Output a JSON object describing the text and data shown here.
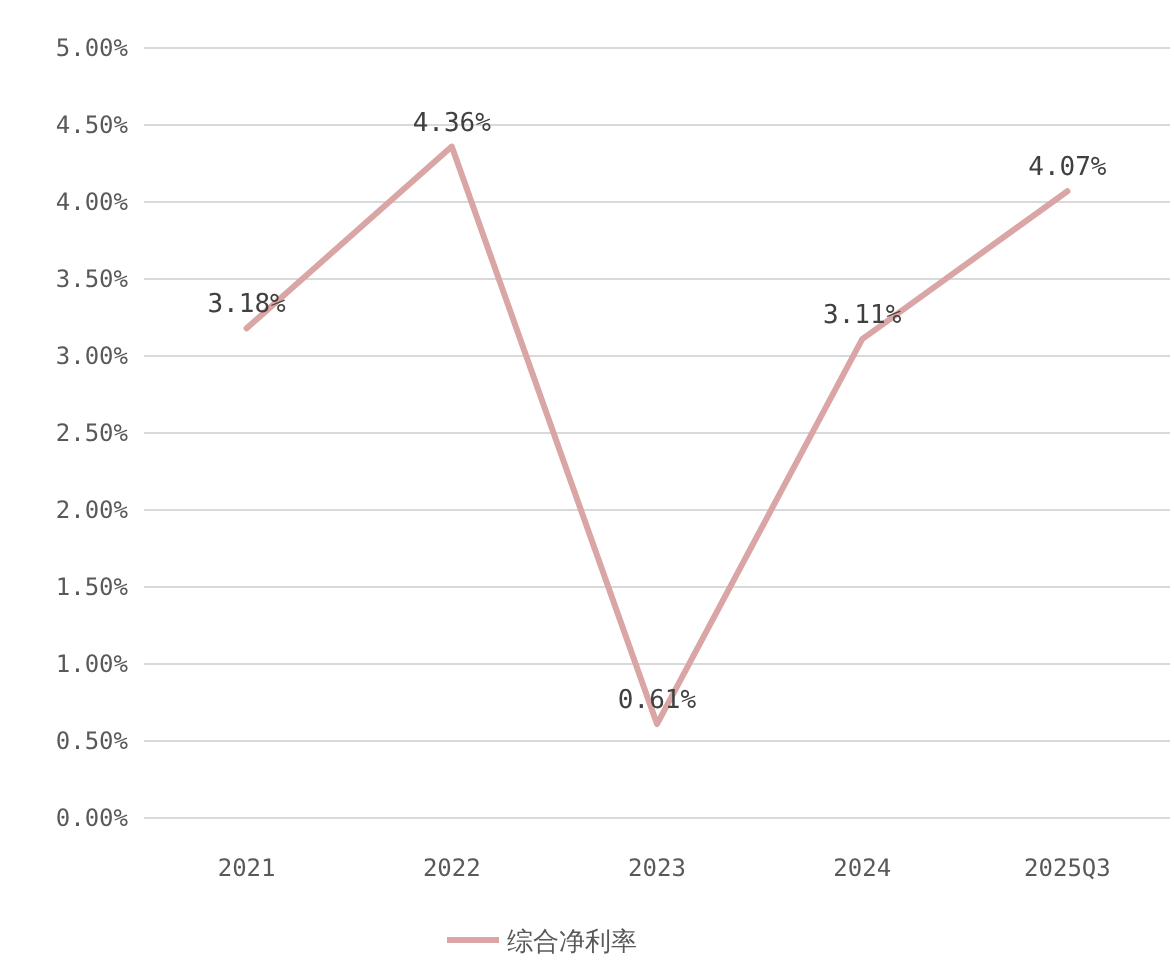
{
  "chart_data": {
    "type": "line",
    "categories": [
      "2021",
      "2022",
      "2023",
      "2024",
      "2025Q3"
    ],
    "series": [
      {
        "name": "综合净利率",
        "color": "#d9a5a5",
        "values": [
          3.18,
          4.36,
          0.61,
          3.11,
          4.07
        ]
      }
    ],
    "value_labels": [
      "3.18%",
      "4.36%",
      "0.61%",
      "3.11%",
      "4.07%"
    ],
    "ylim": [
      0,
      5
    ],
    "yticks": [
      {
        "value": 0,
        "label": "0.00%"
      },
      {
        "value": 0.5,
        "label": "0.50%"
      },
      {
        "value": 1,
        "label": "1.00%"
      },
      {
        "value": 1.5,
        "label": "1.50%"
      },
      {
        "value": 2,
        "label": "2.00%"
      },
      {
        "value": 2.5,
        "label": "2.50%"
      },
      {
        "value": 3,
        "label": "3.00%"
      },
      {
        "value": 3.5,
        "label": "3.50%"
      },
      {
        "value": 4,
        "label": "4.00%"
      },
      {
        "value": 4.5,
        "label": "4.50%"
      },
      {
        "value": 5,
        "label": "5.00%"
      }
    ],
    "grid": "y",
    "legend": "bottom",
    "marker": "none",
    "line_style": "solid"
  }
}
